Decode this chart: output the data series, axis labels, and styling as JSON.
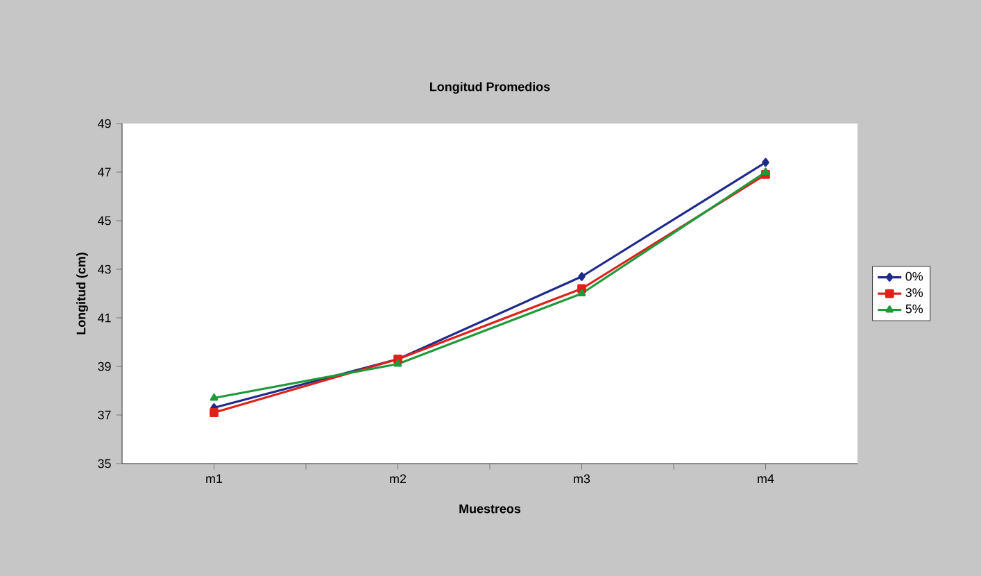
{
  "chart_data": {
    "type": "line",
    "title": "Longitud Promedios",
    "xlabel": "Muestreos",
    "ylabel": "Longitud (cm)",
    "categories": [
      "m1",
      "m2",
      "m3",
      "m4"
    ],
    "series": [
      {
        "name": "0%",
        "color": "#1f2a8a",
        "marker": "diamond",
        "values": [
          37.3,
          39.3,
          42.7,
          47.4
        ]
      },
      {
        "name": "3%",
        "color": "#e0201a",
        "marker": "square",
        "values": [
          37.1,
          39.3,
          42.2,
          46.9
        ]
      },
      {
        "name": "5%",
        "color": "#1f9a3a",
        "marker": "triangle",
        "values": [
          37.7,
          39.1,
          42.0,
          47.0
        ]
      }
    ],
    "ylim": [
      35,
      49
    ],
    "yticks": [
      35,
      37,
      39,
      41,
      43,
      45,
      47,
      49
    ],
    "grid": false,
    "legend": "right",
    "line_style": "solid"
  }
}
